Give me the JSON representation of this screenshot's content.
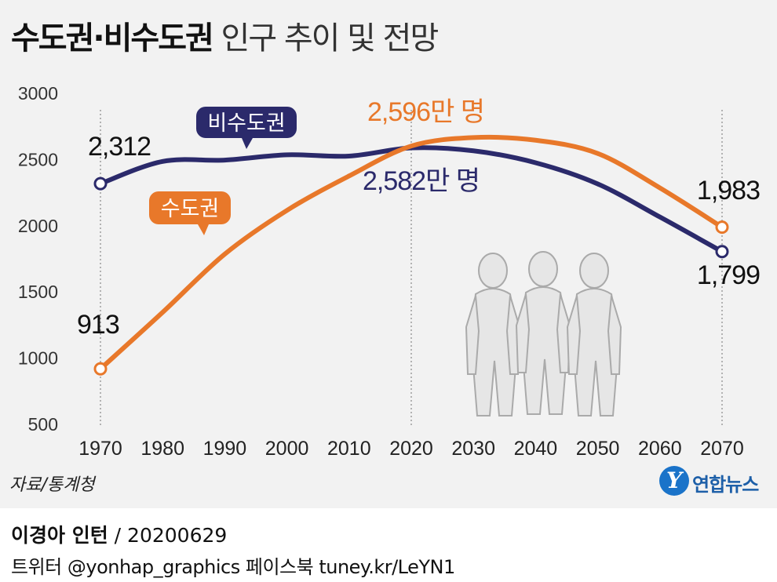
{
  "title": {
    "bold": "수도권·비수도권",
    "normal": "인구 추이 및 전망"
  },
  "source": "자료/통계청",
  "logo": {
    "mark": "Y",
    "text": "연합뉴스"
  },
  "footer": {
    "author": "이경아 인턴",
    "date": "/ 20200629",
    "social": "트위터 @yonhap_graphics  페이스북 tuney.kr/LeYN1"
  },
  "colors": {
    "capital": "#e8782a",
    "noncapital": "#2b2a6b",
    "figure": "#e6e6e6"
  },
  "chart_data": {
    "type": "line",
    "title": "수도권·비수도권 인구 추이 및 전망",
    "unit": "만 명",
    "x": [
      1970,
      1980,
      1990,
      2000,
      2010,
      2020,
      2030,
      2040,
      2050,
      2060,
      2070
    ],
    "xlim": [
      1970,
      2070
    ],
    "ylim": [
      500,
      3000
    ],
    "yticks": [
      "3000",
      "2500",
      "2000",
      "1500",
      "1000",
      "500"
    ],
    "ytick_values": [
      3000,
      2500,
      2000,
      1500,
      1000,
      500
    ],
    "xticks": [
      "1970",
      "1980",
      "1990",
      "2000",
      "2010",
      "2020",
      "2030",
      "2040",
      "2050",
      "2060",
      "2070"
    ],
    "gridlines_x": [
      1970,
      2020,
      2070
    ],
    "series": [
      {
        "name": "비수도권",
        "color": "#2b2a6b",
        "values": [
          2312,
          2480,
          2490,
          2530,
          2520,
          2582,
          2560,
          2470,
          2310,
          2060,
          1799
        ],
        "labels": {
          "start": "2,312",
          "peak": "2,582만 명",
          "end": "1,799"
        }
      },
      {
        "name": "수도권",
        "color": "#e8782a",
        "values": [
          913,
          1340,
          1780,
          2110,
          2370,
          2596,
          2660,
          2640,
          2540,
          2280,
          1983
        ],
        "labels": {
          "start": "913",
          "peak": "2,596만 명",
          "end": "1,983"
        }
      }
    ]
  }
}
